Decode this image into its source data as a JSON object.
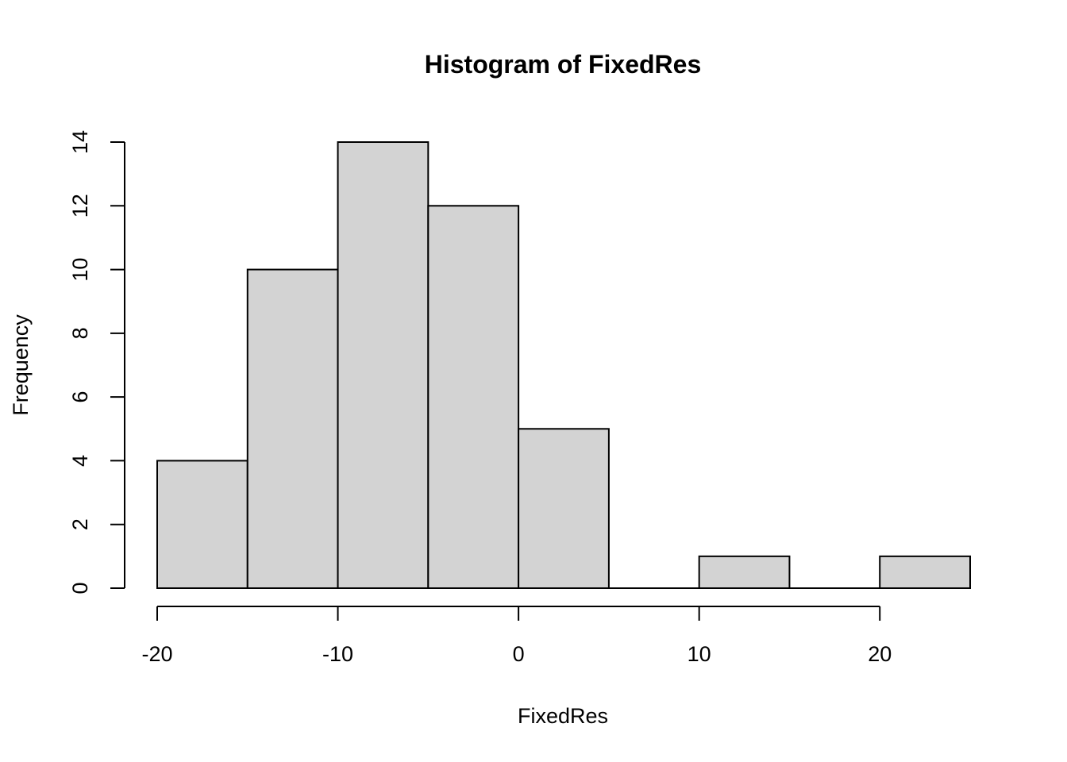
{
  "chart_data": {
    "type": "bar",
    "title": "Histogram of FixedRes",
    "xlabel": "FixedRes",
    "ylabel": "Frequency",
    "bins": [
      {
        "start": -20,
        "end": -15,
        "count": 4
      },
      {
        "start": -15,
        "end": -10,
        "count": 10
      },
      {
        "start": -10,
        "end": -5,
        "count": 14
      },
      {
        "start": -5,
        "end": 0,
        "count": 12
      },
      {
        "start": 0,
        "end": 5,
        "count": 5
      },
      {
        "start": 5,
        "end": 10,
        "count": 0
      },
      {
        "start": 10,
        "end": 15,
        "count": 1
      },
      {
        "start": 15,
        "end": 20,
        "count": 0
      },
      {
        "start": 20,
        "end": 25,
        "count": 1
      }
    ],
    "xlim": [
      -20,
      25
    ],
    "ylim": [
      0,
      14
    ],
    "xticks": [
      -20,
      -10,
      0,
      10,
      20
    ],
    "yticks": [
      0,
      2,
      4,
      6,
      8,
      10,
      12,
      14
    ],
    "bar_color": "#D3D3D3",
    "grid": false
  }
}
